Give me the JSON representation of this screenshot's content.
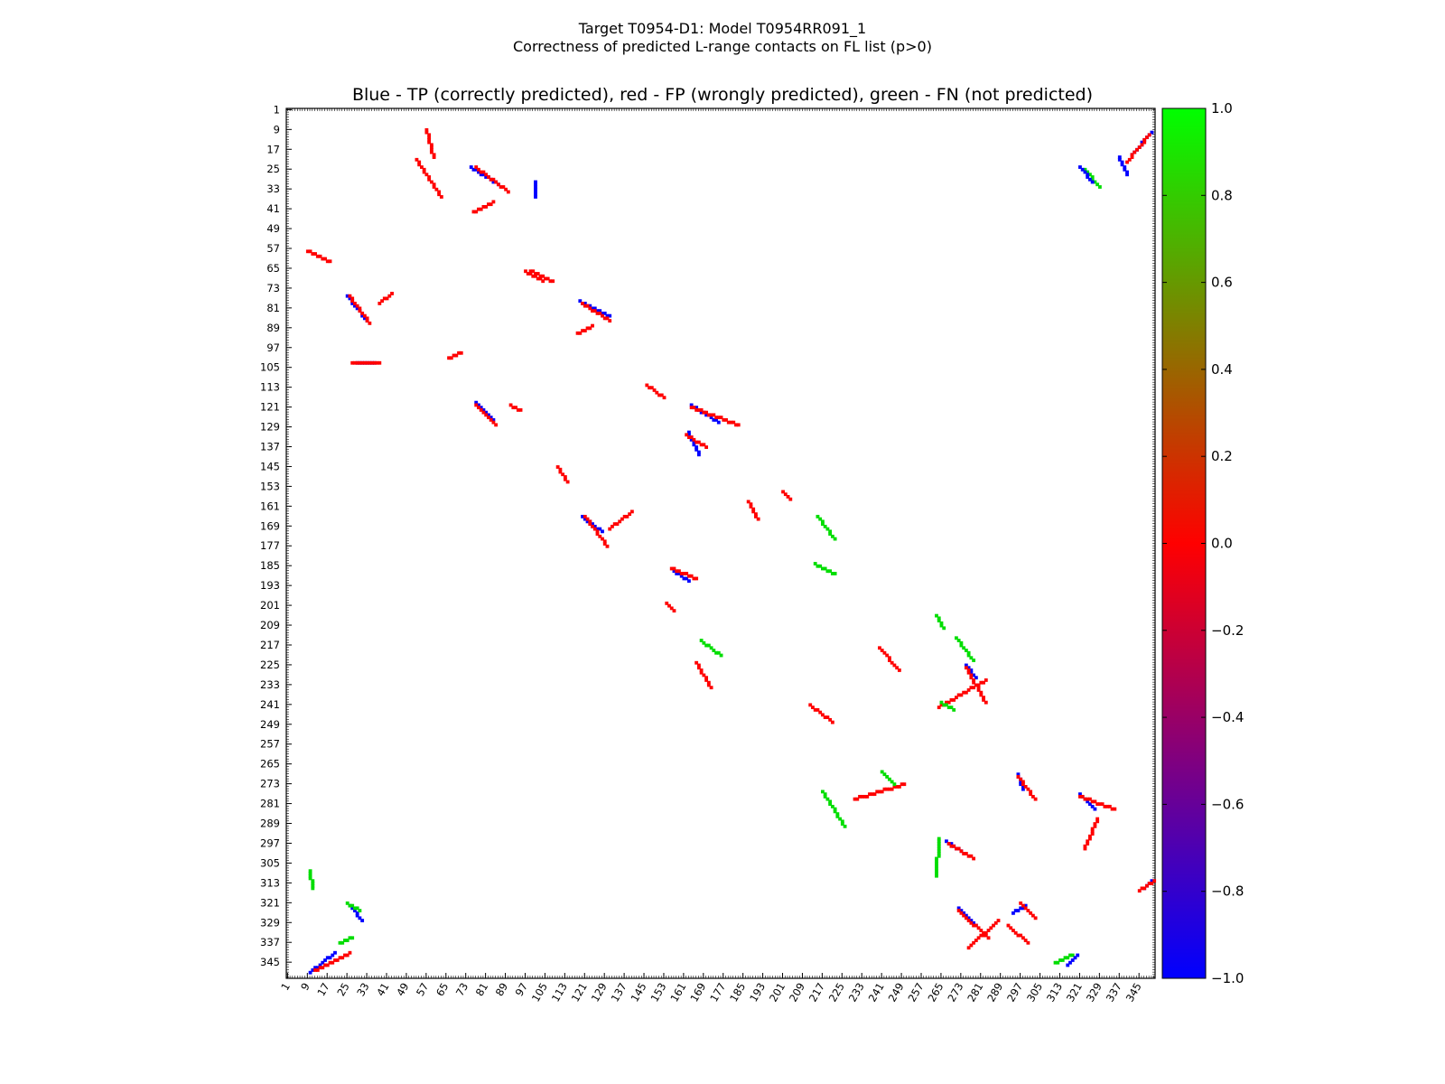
{
  "figure": {
    "title_line1": "Target T0954-D1: Model T0954RR091_1",
    "title_line2": "Correctness of predicted L-range contacts on FL list (p>0)"
  },
  "chart_data": {
    "type": "heatmap",
    "title": "Blue - TP (correctly predicted), red - FP (wrongly predicted), green - FN (not predicted)",
    "xlabel": "",
    "ylabel": "",
    "xlim": [
      1,
      351
    ],
    "ylim": [
      1,
      351
    ],
    "y_inverted": true,
    "ticks": [
      "1",
      "9",
      "17",
      "25",
      "33",
      "41",
      "49",
      "57",
      "65",
      "73",
      "81",
      "89",
      "97",
      "105",
      "113",
      "121",
      "129",
      "137",
      "145",
      "153",
      "161",
      "169",
      "177",
      "185",
      "193",
      "201",
      "209",
      "217",
      "225",
      "233",
      "241",
      "249",
      "257",
      "265",
      "273",
      "281",
      "289",
      "297",
      "305",
      "313",
      "321",
      "329",
      "337",
      "345"
    ],
    "legend": {
      "TP": "#0000ff",
      "FP": "#ff0000",
      "FN": "#00dd00"
    },
    "colorbar": {
      "range": [
        -1.0,
        1.0
      ],
      "ticks": [
        "1.0",
        "0.8",
        "0.6",
        "0.4",
        "0.2",
        "0.0",
        "−0.2",
        "−0.4",
        "−0.6",
        "−0.8",
        "−1.0"
      ],
      "stops": [
        "#00ff00",
        "#ff0000",
        "#0000ff"
      ]
    },
    "contact_segments": [
      {
        "class": "FP",
        "from": [
          57,
          9
        ],
        "to": [
          60,
          20
        ]
      },
      {
        "class": "FP",
        "from": [
          53,
          21
        ],
        "to": [
          63,
          36
        ]
      },
      {
        "class": "TP",
        "from": [
          75,
          24
        ],
        "to": [
          86,
          31
        ]
      },
      {
        "class": "FP",
        "from": [
          77,
          24
        ],
        "to": [
          90,
          34
        ]
      },
      {
        "class": "FP",
        "from": [
          76,
          42
        ],
        "to": [
          84,
          38
        ]
      },
      {
        "class": "TP",
        "from": [
          101,
          30
        ],
        "to": [
          101,
          36
        ]
      },
      {
        "class": "FP",
        "from": [
          9,
          58
        ],
        "to": [
          18,
          62
        ]
      },
      {
        "class": "FP",
        "from": [
          97,
          66
        ],
        "to": [
          104,
          70
        ]
      },
      {
        "class": "FP",
        "from": [
          99,
          66
        ],
        "to": [
          108,
          70
        ]
      },
      {
        "class": "TP",
        "from": [
          25,
          76
        ],
        "to": [
          33,
          86
        ]
      },
      {
        "class": "FP",
        "from": [
          26,
          76
        ],
        "to": [
          34,
          87
        ]
      },
      {
        "class": "FP",
        "from": [
          38,
          79
        ],
        "to": [
          43,
          75
        ]
      },
      {
        "class": "TP",
        "from": [
          119,
          78
        ],
        "to": [
          131,
          84
        ]
      },
      {
        "class": "FP",
        "from": [
          120,
          79
        ],
        "to": [
          131,
          86
        ]
      },
      {
        "class": "FP",
        "from": [
          118,
          91
        ],
        "to": [
          124,
          88
        ]
      },
      {
        "class": "TP",
        "from": [
          29,
          103
        ],
        "to": [
          36,
          103
        ]
      },
      {
        "class": "FP",
        "from": [
          27,
          103
        ],
        "to": [
          38,
          103
        ]
      },
      {
        "class": "FP",
        "from": [
          66,
          101
        ],
        "to": [
          71,
          99
        ]
      },
      {
        "class": "FP",
        "from": [
          146,
          112
        ],
        "to": [
          153,
          117
        ]
      },
      {
        "class": "TP",
        "from": [
          77,
          119
        ],
        "to": [
          84,
          126
        ]
      },
      {
        "class": "FP",
        "from": [
          77,
          120
        ],
        "to": [
          85,
          128
        ]
      },
      {
        "class": "FP",
        "from": [
          91,
          120
        ],
        "to": [
          95,
          122
        ]
      },
      {
        "class": "TP",
        "from": [
          164,
          120
        ],
        "to": [
          175,
          127
        ]
      },
      {
        "class": "FP",
        "from": [
          164,
          121
        ],
        "to": [
          183,
          128
        ]
      },
      {
        "class": "TP",
        "from": [
          163,
          131
        ],
        "to": [
          167,
          140
        ]
      },
      {
        "class": "FP",
        "from": [
          162,
          132
        ],
        "to": [
          170,
          137
        ]
      },
      {
        "class": "FP",
        "from": [
          110,
          145
        ],
        "to": [
          114,
          151
        ]
      },
      {
        "class": "TP",
        "from": [
          120,
          165
        ],
        "to": [
          128,
          171
        ]
      },
      {
        "class": "FP",
        "from": [
          121,
          165
        ],
        "to": [
          130,
          177
        ]
      },
      {
        "class": "FP",
        "from": [
          131,
          170
        ],
        "to": [
          140,
          163
        ]
      },
      {
        "class": "FP",
        "from": [
          187,
          159
        ],
        "to": [
          191,
          166
        ]
      },
      {
        "class": "FP",
        "from": [
          201,
          155
        ],
        "to": [
          204,
          158
        ]
      },
      {
        "class": "TP",
        "from": [
          157,
          187
        ],
        "to": [
          163,
          191
        ]
      },
      {
        "class": "FP",
        "from": [
          156,
          186
        ],
        "to": [
          166,
          190
        ]
      },
      {
        "class": "FP",
        "from": [
          154,
          200
        ],
        "to": [
          157,
          203
        ]
      },
      {
        "class": "FN",
        "from": [
          215,
          165
        ],
        "to": [
          222,
          174
        ]
      },
      {
        "class": "FN",
        "from": [
          214,
          184
        ],
        "to": [
          222,
          188
        ]
      },
      {
        "class": "FN",
        "from": [
          168,
          215
        ],
        "to": [
          176,
          221
        ]
      },
      {
        "class": "FP",
        "from": [
          166,
          224
        ],
        "to": [
          172,
          234
        ]
      },
      {
        "class": "FP",
        "from": [
          212,
          241
        ],
        "to": [
          221,
          248
        ]
      },
      {
        "class": "FP",
        "from": [
          240,
          218
        ],
        "to": [
          248,
          227
        ]
      },
      {
        "class": "FN",
        "from": [
          263,
          205
        ],
        "to": [
          266,
          210
        ]
      },
      {
        "class": "FN",
        "from": [
          271,
          214
        ],
        "to": [
          278,
          223
        ]
      },
      {
        "class": "TP",
        "from": [
          275,
          225
        ],
        "to": [
          279,
          230
        ]
      },
      {
        "class": "FP",
        "from": [
          275,
          226
        ],
        "to": [
          283,
          240
        ]
      },
      {
        "class": "FP",
        "from": [
          264,
          242
        ],
        "to": [
          283,
          231
        ]
      },
      {
        "class": "FN",
        "from": [
          265,
          240
        ],
        "to": [
          270,
          243
        ]
      },
      {
        "class": "FP",
        "from": [
          230,
          279
        ],
        "to": [
          250,
          273
        ]
      },
      {
        "class": "FN",
        "from": [
          217,
          276
        ],
        "to": [
          226,
          290
        ]
      },
      {
        "class": "FN",
        "from": [
          241,
          268
        ],
        "to": [
          246,
          273
        ]
      },
      {
        "class": "TP",
        "from": [
          296,
          269
        ],
        "to": [
          298,
          275
        ]
      },
      {
        "class": "FP",
        "from": [
          296,
          270
        ],
        "to": [
          303,
          279
        ]
      },
      {
        "class": "TP",
        "from": [
          321,
          277
        ],
        "to": [
          327,
          283
        ]
      },
      {
        "class": "FP",
        "from": [
          321,
          278
        ],
        "to": [
          335,
          283
        ]
      },
      {
        "class": "FP",
        "from": [
          328,
          287
        ],
        "to": [
          323,
          299
        ]
      },
      {
        "class": "FN",
        "from": [
          264,
          295
        ],
        "to": [
          263,
          310
        ]
      },
      {
        "class": "TP",
        "from": [
          267,
          296
        ],
        "to": [
          273,
          300
        ]
      },
      {
        "class": "FP",
        "from": [
          268,
          297
        ],
        "to": [
          278,
          303
        ]
      },
      {
        "class": "TP",
        "from": [
          272,
          323
        ],
        "to": [
          279,
          330
        ]
      },
      {
        "class": "FP",
        "from": [
          272,
          324
        ],
        "to": [
          284,
          335
        ]
      },
      {
        "class": "FP",
        "from": [
          276,
          339
        ],
        "to": [
          288,
          328
        ]
      },
      {
        "class": "TP",
        "from": [
          294,
          325
        ],
        "to": [
          299,
          322
        ]
      },
      {
        "class": "FP",
        "from": [
          297,
          321
        ],
        "to": [
          303,
          327
        ]
      },
      {
        "class": "FP",
        "from": [
          292,
          330
        ],
        "to": [
          300,
          337
        ]
      },
      {
        "class": "FN",
        "from": [
          10,
          308
        ],
        "to": [
          11,
          315
        ]
      },
      {
        "class": "TP",
        "from": [
          26,
          322
        ],
        "to": [
          31,
          328
        ]
      },
      {
        "class": "FN",
        "from": [
          25,
          321
        ],
        "to": [
          30,
          324
        ]
      },
      {
        "class": "FN",
        "from": [
          22,
          337
        ],
        "to": [
          27,
          335
        ]
      },
      {
        "class": "TP",
        "from": [
          10,
          349
        ],
        "to": [
          20,
          341
        ]
      },
      {
        "class": "FP",
        "from": [
          12,
          348
        ],
        "to": [
          26,
          341
        ]
      },
      {
        "class": "TP",
        "from": [
          350,
          10
        ],
        "to": [
          342,
          19
        ]
      },
      {
        "class": "FP",
        "from": [
          349,
          11
        ],
        "to": [
          340,
          22
        ]
      },
      {
        "class": "TP",
        "from": [
          337,
          20
        ],
        "to": [
          340,
          27
        ]
      },
      {
        "class": "FN",
        "from": [
          323,
          25
        ],
        "to": [
          329,
          32
        ]
      },
      {
        "class": "TP",
        "from": [
          321,
          24
        ],
        "to": [
          326,
          30
        ]
      },
      {
        "class": "FN",
        "from": [
          311,
          345
        ],
        "to": [
          318,
          342
        ]
      },
      {
        "class": "TP",
        "from": [
          316,
          346
        ],
        "to": [
          320,
          342
        ]
      },
      {
        "class": "TP",
        "from": [
          347,
          315
        ],
        "to": [
          350,
          312
        ]
      },
      {
        "class": "FP",
        "from": [
          345,
          316
        ],
        "to": [
          351,
          312
        ]
      }
    ]
  }
}
